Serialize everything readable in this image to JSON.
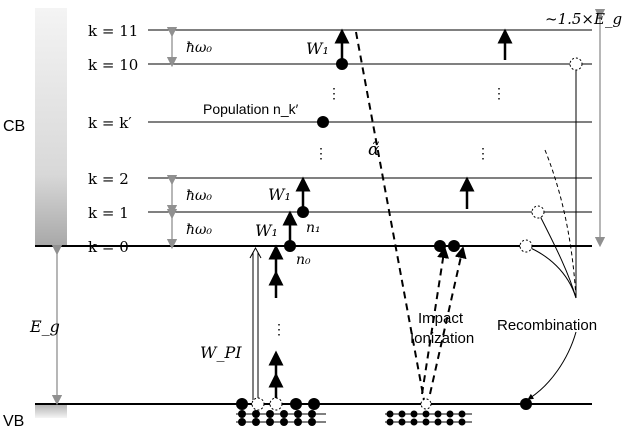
{
  "band_labels": {
    "cb": "CB",
    "vb": "VB"
  },
  "level_labels": [
    "k = 11",
    "k = 10",
    "k = k′",
    "k = 2",
    "k = 1",
    "k = 0"
  ],
  "annotations": {
    "hw_top": "ħω₀",
    "hw_mid": "ħω₀",
    "hw_bot": "ħω₀",
    "w1_top": "W₁",
    "w1_mid": "W₁",
    "w1_bot": "W₁",
    "population": "Population n_k′",
    "n1": "n₁",
    "n0": "n₀",
    "alpha": "α̃",
    "eg": "E_g",
    "wpi": "W_PI",
    "range": "~1.5×E_g",
    "dots_mid": "⋮"
  },
  "process_labels": {
    "impact_line1": "Impact",
    "impact_line2": "Ionization",
    "recombination": "Recombination"
  },
  "colors": {
    "line": "#000000",
    "gray": "#909090",
    "cb_top": "#e8e8e8",
    "cb_bottom": "#9c9c9c"
  }
}
